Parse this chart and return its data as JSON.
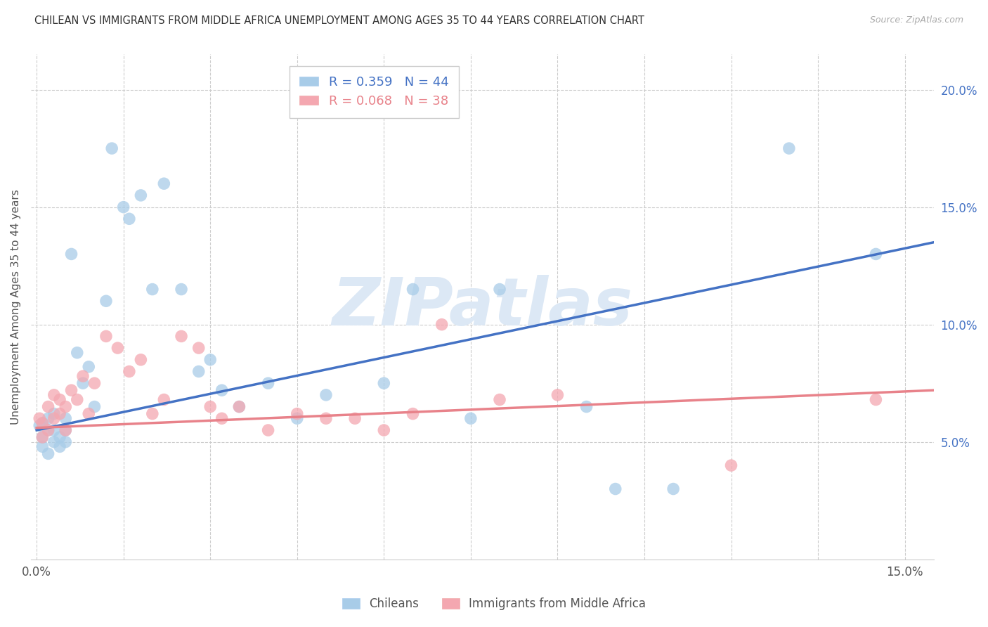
{
  "title": "CHILEAN VS IMMIGRANTS FROM MIDDLE AFRICA UNEMPLOYMENT AMONG AGES 35 TO 44 YEARS CORRELATION CHART",
  "source": "Source: ZipAtlas.com",
  "ylabel": "Unemployment Among Ages 35 to 44 years",
  "ylim": [
    0.0,
    0.215
  ],
  "xlim": [
    -0.001,
    0.155
  ],
  "yticks": [
    0.05,
    0.1,
    0.15,
    0.2
  ],
  "ytick_labels": [
    "5.0%",
    "10.0%",
    "15.0%",
    "20.0%"
  ],
  "xtick_vals": [
    0.0,
    0.015,
    0.03,
    0.045,
    0.06,
    0.075,
    0.09,
    0.105,
    0.12,
    0.135,
    0.15
  ],
  "chilean_color": "#a8cce8",
  "immigrant_color": "#f4a7b0",
  "chilean_line_color": "#4472c4",
  "immigrant_line_color": "#e8828a",
  "background_color": "#ffffff",
  "watermark_text": "ZIPatlas",
  "watermark_color": "#dce8f5",
  "R_chilean": 0.359,
  "N_chilean": 44,
  "R_immigrant": 0.068,
  "N_immigrant": 38,
  "chilean_line_x0": 0.0,
  "chilean_line_y0": 0.055,
  "chilean_line_x1": 0.155,
  "chilean_line_y1": 0.135,
  "immigrant_line_x0": 0.0,
  "immigrant_line_y0": 0.056,
  "immigrant_line_x1": 0.155,
  "immigrant_line_y1": 0.072,
  "chilean_pts_x": [
    0.0005,
    0.001,
    0.001,
    0.001,
    0.002,
    0.002,
    0.002,
    0.003,
    0.003,
    0.003,
    0.004,
    0.004,
    0.005,
    0.005,
    0.005,
    0.006,
    0.007,
    0.008,
    0.009,
    0.01,
    0.012,
    0.013,
    0.015,
    0.016,
    0.018,
    0.02,
    0.022,
    0.025,
    0.028,
    0.03,
    0.032,
    0.035,
    0.04,
    0.045,
    0.05,
    0.06,
    0.065,
    0.075,
    0.08,
    0.095,
    0.1,
    0.11,
    0.13,
    0.145
  ],
  "chilean_pts_y": [
    0.057,
    0.048,
    0.052,
    0.058,
    0.045,
    0.055,
    0.06,
    0.05,
    0.055,
    0.062,
    0.048,
    0.052,
    0.05,
    0.055,
    0.06,
    0.13,
    0.088,
    0.075,
    0.082,
    0.065,
    0.11,
    0.175,
    0.15,
    0.145,
    0.155,
    0.115,
    0.16,
    0.115,
    0.08,
    0.085,
    0.072,
    0.065,
    0.075,
    0.06,
    0.07,
    0.075,
    0.115,
    0.06,
    0.115,
    0.065,
    0.03,
    0.03,
    0.175,
    0.13
  ],
  "immigrant_pts_x": [
    0.0005,
    0.001,
    0.001,
    0.002,
    0.002,
    0.003,
    0.003,
    0.004,
    0.004,
    0.005,
    0.005,
    0.006,
    0.007,
    0.008,
    0.009,
    0.01,
    0.012,
    0.014,
    0.016,
    0.018,
    0.02,
    0.022,
    0.025,
    0.028,
    0.03,
    0.032,
    0.035,
    0.04,
    0.045,
    0.05,
    0.055,
    0.06,
    0.065,
    0.07,
    0.08,
    0.09,
    0.12,
    0.145
  ],
  "immigrant_pts_y": [
    0.06,
    0.052,
    0.058,
    0.055,
    0.065,
    0.06,
    0.07,
    0.062,
    0.068,
    0.055,
    0.065,
    0.072,
    0.068,
    0.078,
    0.062,
    0.075,
    0.095,
    0.09,
    0.08,
    0.085,
    0.062,
    0.068,
    0.095,
    0.09,
    0.065,
    0.06,
    0.065,
    0.055,
    0.062,
    0.06,
    0.06,
    0.055,
    0.062,
    0.1,
    0.068,
    0.07,
    0.04,
    0.068
  ]
}
